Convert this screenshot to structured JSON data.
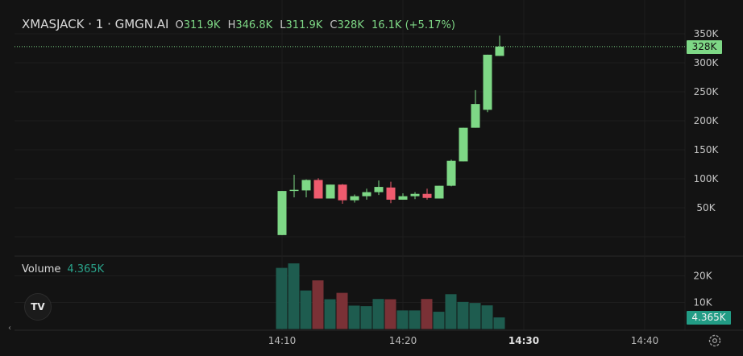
{
  "header": {
    "symbol": "XMASJACK · 1 · GMGN.AI",
    "open_label": "O",
    "open": "311.9K",
    "high_label": "H",
    "high": "346.8K",
    "low_label": "L",
    "low": "311.9K",
    "close_label": "C",
    "close": "328K",
    "change": "16.1K (+5.17%)"
  },
  "volume_legend": {
    "name": "Volume",
    "value": "4.365K"
  },
  "last_price_tag": "328K",
  "volume_tag": "4.365K",
  "logo_text": "TV",
  "icons": {
    "logo": "tradingview-logo-icon",
    "settings": "gear-icon",
    "scroll_left": "chevron-left-icon"
  },
  "colors": {
    "up": "#7ed886",
    "down": "#ef5b6e",
    "vol_up": "#1e5c4f",
    "vol_down": "#7a3136",
    "bg": "#131313"
  },
  "chart_data": {
    "type": "candlestick",
    "price_axis": {
      "ticks": [
        50000,
        100000,
        150000,
        200000,
        250000,
        300000,
        350000
      ],
      "tick_labels": [
        "50K",
        "100K",
        "150K",
        "200K",
        "250K",
        "300K",
        "350K"
      ],
      "range": [
        0,
        360000
      ]
    },
    "volume_axis": {
      "ticks": [
        10000,
        20000
      ],
      "tick_labels": [
        "10K",
        "20K"
      ],
      "range": [
        0,
        25000
      ]
    },
    "time_axis": {
      "labels": [
        "14:10",
        "14:20",
        "14:30",
        "14:40"
      ],
      "bold": [
        false,
        false,
        true,
        false
      ]
    },
    "candles": [
      {
        "time": "14:10",
        "open": 3000,
        "high": 79000,
        "low": 3000,
        "close": 79000,
        "volume": 23000
      },
      {
        "time": "14:11",
        "open": 79000,
        "high": 107000,
        "low": 68000,
        "close": 81000,
        "volume": 24700
      },
      {
        "time": "14:12",
        "open": 80000,
        "high": 99000,
        "low": 68000,
        "close": 98000,
        "volume": 14500
      },
      {
        "time": "14:13",
        "open": 98000,
        "high": 101000,
        "low": 66000,
        "close": 66000,
        "volume": 18300
      },
      {
        "time": "14:14",
        "open": 66000,
        "high": 90000,
        "low": 66000,
        "close": 90000,
        "volume": 11200
      },
      {
        "time": "14:15",
        "open": 90000,
        "high": 91000,
        "low": 57000,
        "close": 63000,
        "volume": 13600
      },
      {
        "time": "14:16",
        "open": 63000,
        "high": 73000,
        "low": 59000,
        "close": 70000,
        "volume": 8800
      },
      {
        "time": "14:17",
        "open": 70000,
        "high": 83000,
        "low": 64000,
        "close": 77000,
        "volume": 8600
      },
      {
        "time": "14:18",
        "open": 77000,
        "high": 97000,
        "low": 72000,
        "close": 86000,
        "volume": 11300
      },
      {
        "time": "14:19",
        "open": 85000,
        "high": 95000,
        "low": 58000,
        "close": 64000,
        "volume": 11200
      },
      {
        "time": "14:20",
        "open": 64000,
        "high": 75000,
        "low": 64000,
        "close": 70000,
        "volume": 7000
      },
      {
        "time": "14:21",
        "open": 70000,
        "high": 77000,
        "low": 65000,
        "close": 74000,
        "volume": 7000
      },
      {
        "time": "14:22",
        "open": 74000,
        "high": 83000,
        "low": 64000,
        "close": 67000,
        "volume": 11300
      },
      {
        "time": "14:23",
        "open": 66000,
        "high": 88000,
        "low": 66000,
        "close": 88000,
        "volume": 6500
      },
      {
        "time": "14:24",
        "open": 88000,
        "high": 133000,
        "low": 87000,
        "close": 131000,
        "volume": 13100
      },
      {
        "time": "14:25",
        "open": 130000,
        "high": 188000,
        "low": 130000,
        "close": 188000,
        "volume": 10200
      },
      {
        "time": "14:26",
        "open": 188000,
        "high": 253000,
        "low": 188000,
        "close": 229000,
        "volume": 9800
      },
      {
        "time": "14:27",
        "open": 219000,
        "high": 314000,
        "low": 215000,
        "close": 314000,
        "volume": 8900
      },
      {
        "time": "14:28",
        "open": 311900,
        "high": 346800,
        "low": 311900,
        "close": 328000,
        "volume": 4365
      }
    ]
  }
}
